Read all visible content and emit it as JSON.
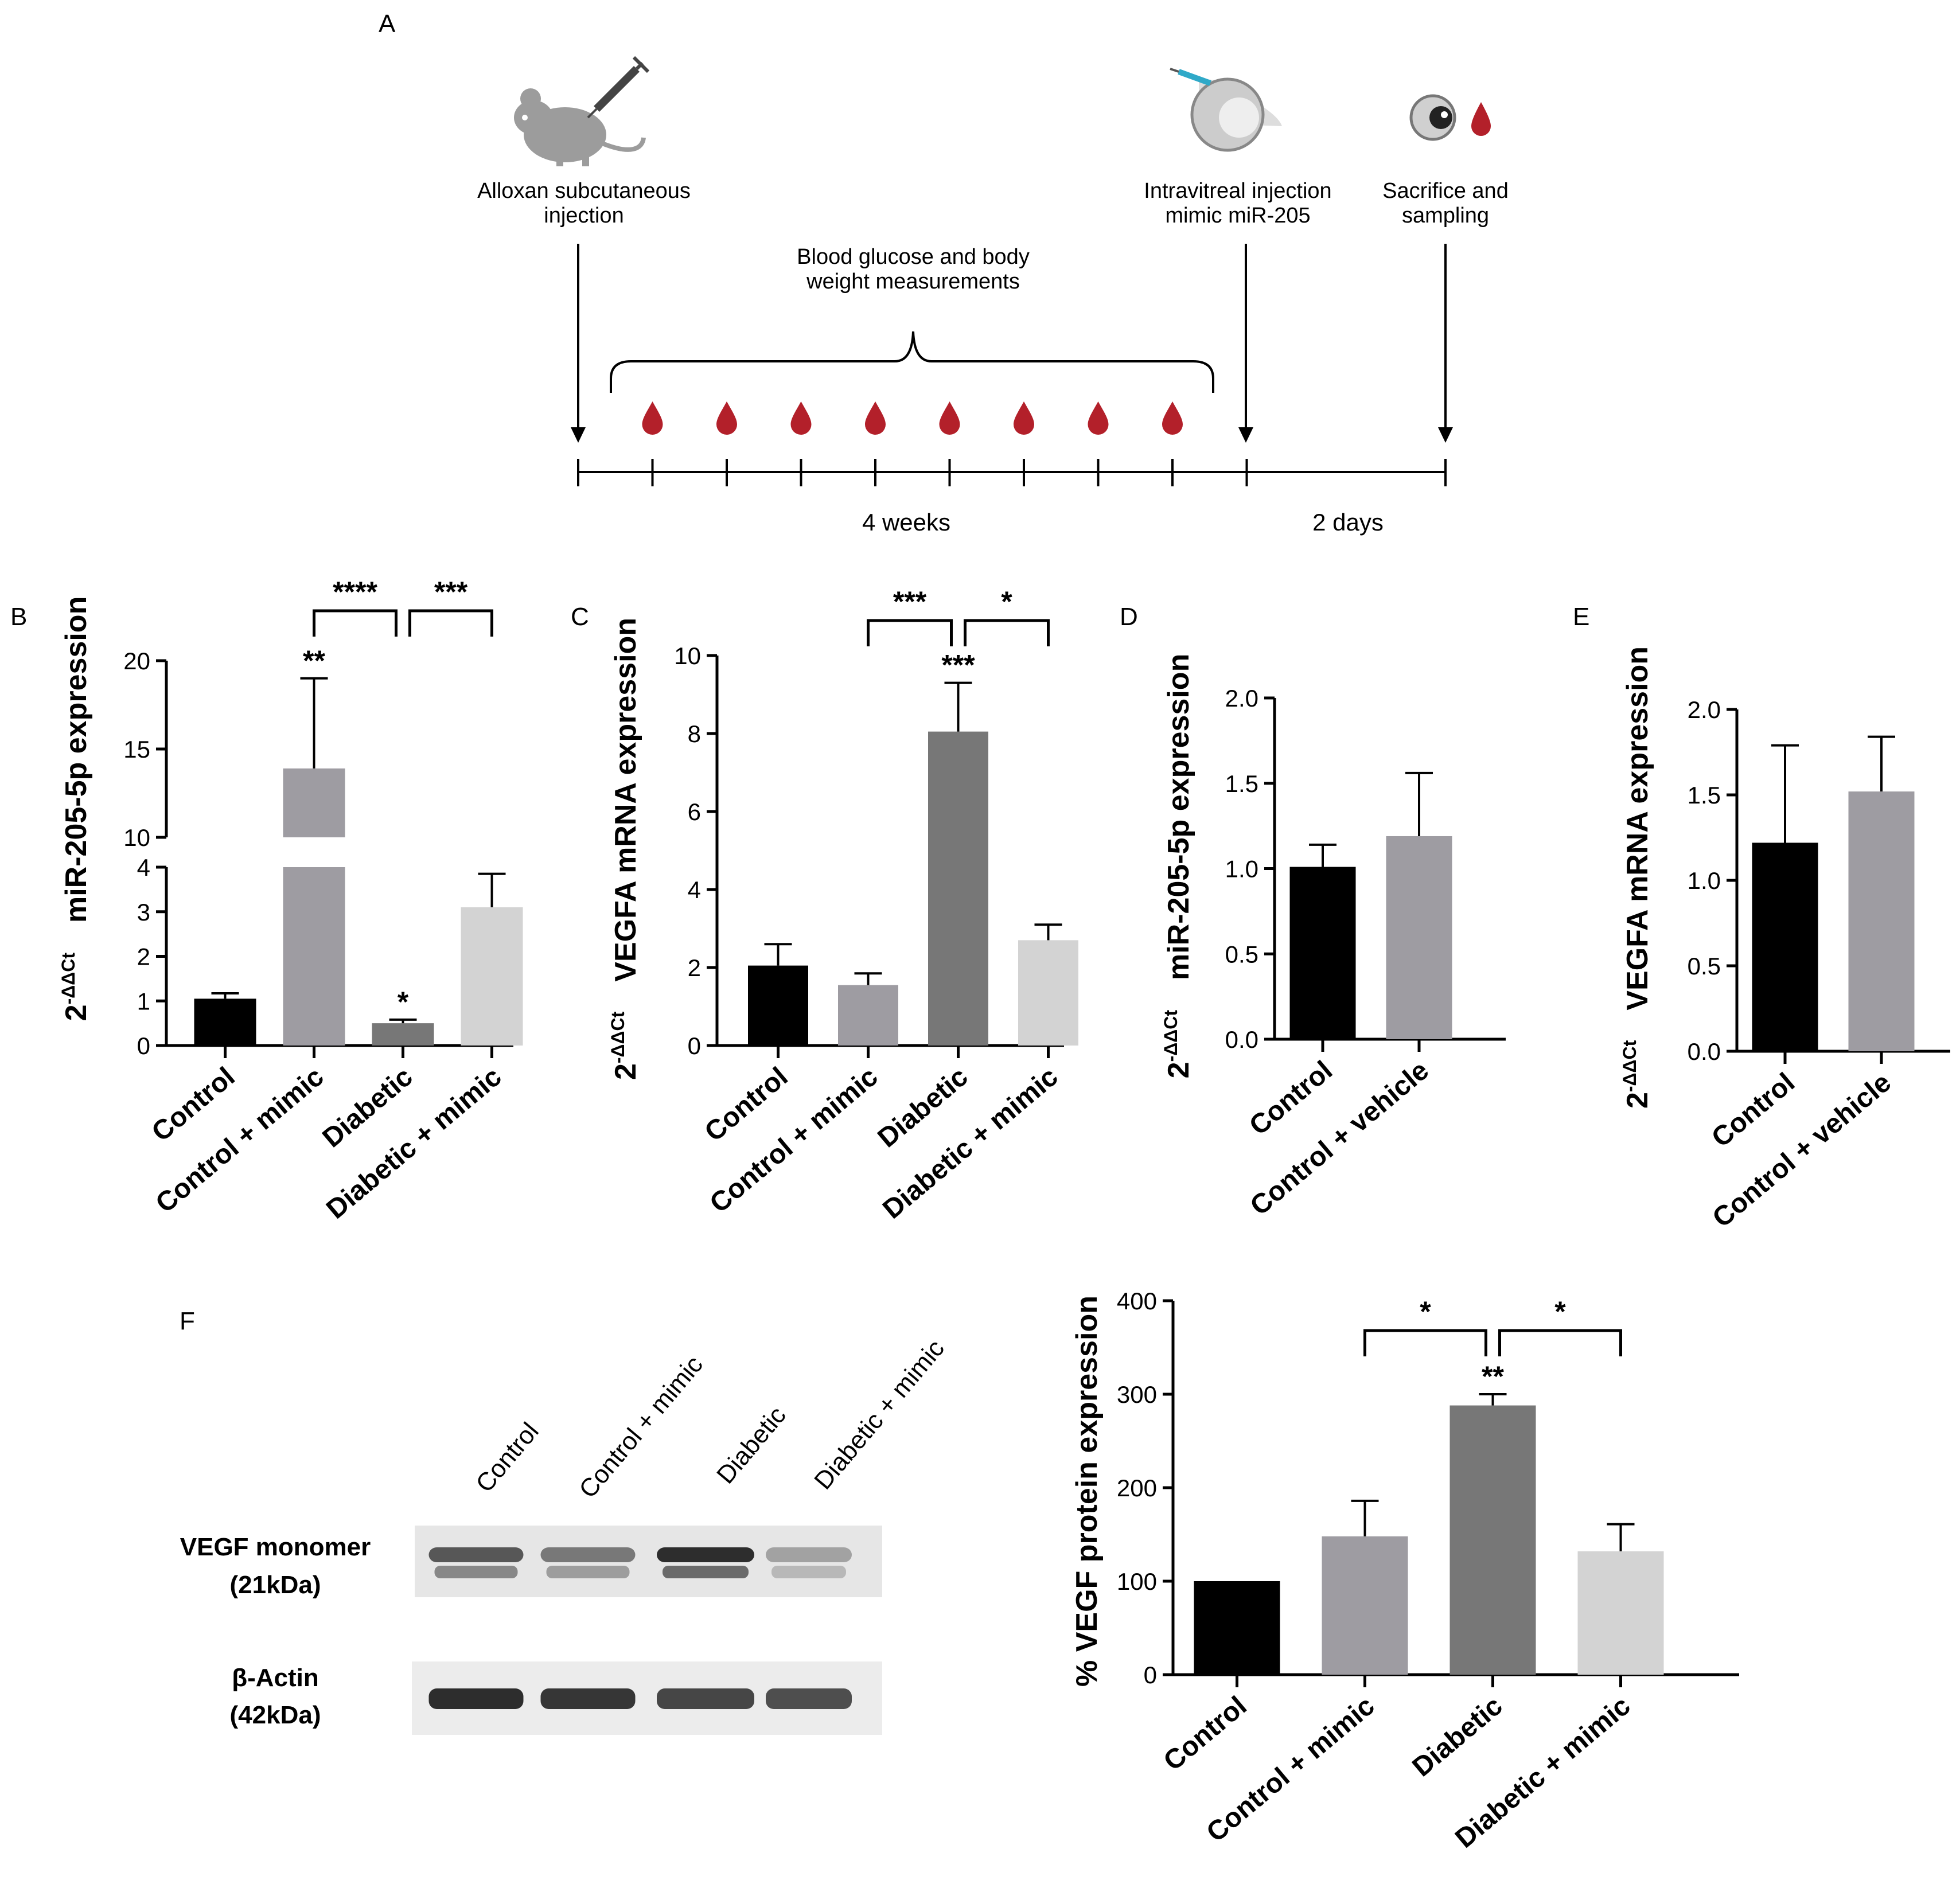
{
  "panels": {
    "a": "A",
    "b": "B",
    "c": "C",
    "d": "D",
    "e": "E",
    "f": "F"
  },
  "timeline": {
    "step1": [
      "Alloxan subcutaneous",
      "injection"
    ],
    "measure": [
      "Blood glucose and body",
      "weight measurements"
    ],
    "step2": [
      "Intravitreal injection",
      "mimic miR-205"
    ],
    "step3": [
      "Sacrifice and",
      "sampling"
    ],
    "period1": "4 weeks",
    "period2": "2 days",
    "colors": {
      "drop": "#b3202a",
      "mouse": "#9c9c9c"
    },
    "icons": [
      "mouse-syringe-icon",
      "eye-injection-icon",
      "eye-icon",
      "blood-drop-icon"
    ]
  },
  "blot": {
    "lanes": [
      "Control",
      "Control + mimic",
      "Diabetic",
      "Diabetic + mimic"
    ],
    "rows": [
      {
        "label": [
          "VEGF monomer",
          "(21kDa)"
        ],
        "intensity": [
          0.7,
          0.5,
          0.95,
          0.25
        ]
      },
      {
        "label": [
          "β-Actin",
          "(42kDa)"
        ],
        "intensity": [
          0.95,
          0.9,
          0.8,
          0.75
        ]
      }
    ]
  },
  "chart_data": [
    {
      "id": "B",
      "type": "bar",
      "categories": [
        "Control",
        "Control + mimic",
        "Diabetic",
        "Diabetic + mimic"
      ],
      "values": [
        1.05,
        13.9,
        0.5,
        3.1
      ],
      "errors": [
        0.12,
        5.1,
        0.08,
        0.75
      ],
      "colors": [
        "#000000",
        "#9e9ca2",
        "#777777",
        "#d3d3d3"
      ],
      "ylabel_base": "2",
      "ylabel_sup": "-ΔΔCt",
      "ylabel": "miR-205-5p expression",
      "broken_axis": {
        "lower": [
          0,
          4
        ],
        "upper": [
          10,
          20
        ]
      },
      "yticks": [
        0,
        1,
        2,
        3,
        4,
        10,
        15,
        20
      ],
      "bar_sig": [
        "",
        "**",
        "*",
        ""
      ],
      "brackets": [
        {
          "from": 1,
          "to": 2,
          "label": "****"
        },
        {
          "from": 2,
          "to": 3,
          "label": "***"
        }
      ]
    },
    {
      "id": "C",
      "type": "bar",
      "categories": [
        "Control",
        "Control + mimic",
        "Diabetic",
        "Diabetic + mimic"
      ],
      "values": [
        2.05,
        1.55,
        8.05,
        2.7
      ],
      "errors": [
        0.55,
        0.3,
        1.25,
        0.4
      ],
      "colors": [
        "#000000",
        "#9e9ca2",
        "#777777",
        "#d3d3d3"
      ],
      "ylabel_base": "2",
      "ylabel_sup": "-ΔΔCt",
      "ylabel": "VEGFA mRNA expression",
      "ylim": [
        0,
        10
      ],
      "yticks": [
        0,
        2,
        4,
        6,
        8,
        10
      ],
      "bar_sig": [
        "",
        "",
        "***",
        ""
      ],
      "brackets": [
        {
          "from": 1,
          "to": 2,
          "label": "***"
        },
        {
          "from": 2,
          "to": 3,
          "label": "*"
        }
      ]
    },
    {
      "id": "D",
      "type": "bar",
      "categories": [
        "Control",
        "Control + vehicle"
      ],
      "values": [
        1.01,
        1.19
      ],
      "errors": [
        0.13,
        0.37
      ],
      "colors": [
        "#000000",
        "#9e9ca2"
      ],
      "ylabel_base": "2",
      "ylabel_sup": "-ΔΔCt",
      "ylabel": "miR-205-5p expression",
      "ylim": [
        0,
        2
      ],
      "yticks": [
        "0.0",
        "0.5",
        "1.0",
        "1.5",
        "2.0"
      ]
    },
    {
      "id": "E",
      "type": "bar",
      "categories": [
        "Control",
        "Control + vehicle"
      ],
      "values": [
        1.22,
        1.52
      ],
      "errors": [
        0.57,
        0.32
      ],
      "colors": [
        "#000000",
        "#9e9ca2"
      ],
      "ylabel_base": "2",
      "ylabel_sup": "-ΔΔCt",
      "ylabel": "VEGFA mRNA expression",
      "ylim": [
        0,
        2
      ],
      "yticks": [
        "0.0",
        "0.5",
        "1.0",
        "1.5",
        "2.0"
      ]
    },
    {
      "id": "F-chart",
      "type": "bar",
      "categories": [
        "Control",
        "Control + mimic",
        "Diabetic",
        "Diabetic + mimic"
      ],
      "values": [
        100,
        148,
        288,
        132
      ],
      "errors": [
        0,
        38,
        12,
        29
      ],
      "colors": [
        "#000000",
        "#9e9ca2",
        "#777777",
        "#d3d3d3"
      ],
      "ylabel": "% VEGF protein expression",
      "ylim": [
        0,
        400
      ],
      "yticks": [
        0,
        100,
        200,
        300,
        400
      ],
      "bar_sig": [
        "",
        "",
        "**",
        ""
      ],
      "brackets": [
        {
          "from": 1,
          "to": 2,
          "label": "*"
        },
        {
          "from": 2,
          "to": 3,
          "label": "*"
        }
      ]
    }
  ]
}
